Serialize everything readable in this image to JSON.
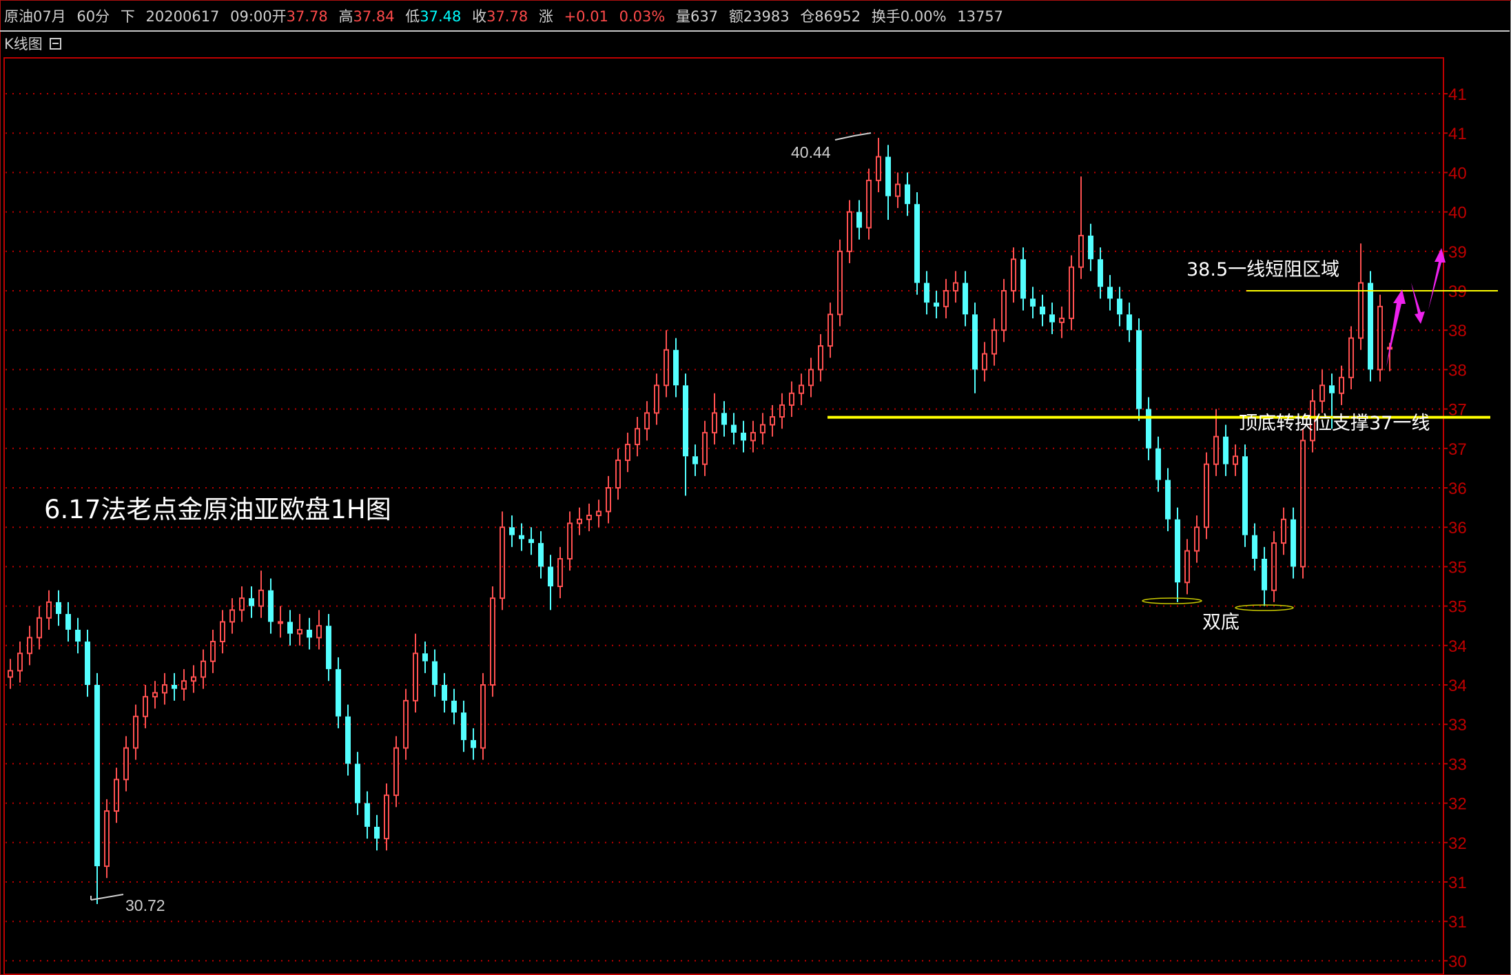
{
  "header": {
    "instrument": "原油07月",
    "period": "60分",
    "mode": "下",
    "date": "20200617",
    "time": "09:00",
    "open_label": "开",
    "open": "37.78",
    "high_label": "高",
    "high": "37.84",
    "low_label": "低",
    "low": "37.48",
    "close_label": "收",
    "close": "37.78",
    "change_label": "涨",
    "change": "+0.01",
    "change_pct": "0.03%",
    "volume": "量637",
    "amount": "额23983",
    "open_interest": "仓86952",
    "turnover": "换手0.00%",
    "extra": "13757"
  },
  "panel": {
    "title": "K线图",
    "toggle_icon": "minimize-box-icon"
  },
  "colors": {
    "up": "#ff5050",
    "down": "#54ffff",
    "axis": "#c00000",
    "grid": "#c00000",
    "annotation_line": "#ffff00",
    "arrow": "#ee22ee",
    "text": "#ffffff"
  },
  "chart_data": {
    "type": "candlestick",
    "title": "6.17法老点金原油亚欧盘1H图",
    "ylim": [
      30,
      41
    ],
    "yticks": [
      41,
      40.5,
      40,
      39.5,
      39,
      38.5,
      38,
      37.5,
      37,
      36.5,
      36,
      35.5,
      35,
      34.5,
      34,
      33.5,
      33,
      32.5,
      32,
      31.5,
      31,
      30.5,
      30
    ],
    "ytick_labels": [
      "41",
      "41",
      "40",
      "40",
      "39",
      "39",
      "38",
      "38",
      "37",
      "37",
      "36",
      "36",
      "35",
      "35",
      "34",
      "34",
      "33",
      "33",
      "32",
      "32",
      "31",
      "31",
      "30"
    ],
    "grid": true,
    "y_axis": "right",
    "ohlc": [
      [
        33.6,
        33.83,
        33.45,
        33.68
      ],
      [
        33.68,
        34.05,
        33.53,
        33.9
      ],
      [
        33.9,
        34.25,
        33.75,
        34.1
      ],
      [
        34.1,
        34.5,
        33.95,
        34.35
      ],
      [
        34.35,
        34.7,
        34.2,
        34.55
      ],
      [
        34.55,
        34.7,
        34.25,
        34.4
      ],
      [
        34.4,
        34.55,
        34.05,
        34.2
      ],
      [
        34.2,
        34.35,
        33.9,
        34.05
      ],
      [
        34.05,
        34.2,
        33.35,
        33.5
      ],
      [
        33.5,
        33.65,
        30.72,
        31.2
      ],
      [
        31.2,
        32.05,
        31.05,
        31.9
      ],
      [
        31.9,
        32.45,
        31.75,
        32.3
      ],
      [
        32.3,
        32.85,
        32.15,
        32.7
      ],
      [
        32.7,
        33.25,
        32.55,
        33.1
      ],
      [
        33.1,
        33.5,
        32.95,
        33.35
      ],
      [
        33.35,
        33.55,
        33.2,
        33.4
      ],
      [
        33.4,
        33.65,
        33.25,
        33.5
      ],
      [
        33.5,
        33.65,
        33.3,
        33.45
      ],
      [
        33.45,
        33.7,
        33.3,
        33.55
      ],
      [
        33.55,
        33.75,
        33.4,
        33.6
      ],
      [
        33.6,
        33.95,
        33.45,
        33.8
      ],
      [
        33.8,
        34.2,
        33.65,
        34.05
      ],
      [
        34.05,
        34.45,
        33.9,
        34.3
      ],
      [
        34.3,
        34.6,
        34.15,
        34.45
      ],
      [
        34.45,
        34.75,
        34.3,
        34.6
      ],
      [
        34.6,
        34.75,
        34.35,
        34.5
      ],
      [
        34.5,
        34.95,
        34.35,
        34.7
      ],
      [
        34.7,
        34.85,
        34.15,
        34.3
      ],
      [
        34.3,
        34.5,
        34.1,
        34.3
      ],
      [
        34.3,
        34.45,
        34.0,
        34.15
      ],
      [
        34.15,
        34.4,
        34.0,
        34.2
      ],
      [
        34.2,
        34.35,
        33.95,
        34.1
      ],
      [
        34.1,
        34.45,
        33.95,
        34.25
      ],
      [
        34.25,
        34.4,
        33.55,
        33.7
      ],
      [
        33.7,
        33.85,
        32.95,
        33.1
      ],
      [
        33.1,
        33.25,
        32.35,
        32.5
      ],
      [
        32.5,
        32.65,
        31.85,
        32.0
      ],
      [
        32.0,
        32.15,
        31.55,
        31.7
      ],
      [
        31.7,
        31.85,
        31.4,
        31.55
      ],
      [
        31.55,
        32.25,
        31.4,
        32.1
      ],
      [
        32.1,
        32.85,
        31.95,
        32.7
      ],
      [
        32.7,
        33.45,
        32.55,
        33.3
      ],
      [
        33.3,
        34.15,
        33.15,
        33.9
      ],
      [
        33.9,
        34.05,
        33.65,
        33.8
      ],
      [
        33.8,
        33.95,
        33.35,
        33.5
      ],
      [
        33.5,
        33.65,
        33.15,
        33.3
      ],
      [
        33.3,
        33.45,
        33.0,
        33.15
      ],
      [
        33.15,
        33.3,
        32.65,
        32.8
      ],
      [
        32.8,
        32.95,
        32.55,
        32.7
      ],
      [
        32.7,
        33.65,
        32.55,
        33.5
      ],
      [
        33.5,
        34.75,
        33.35,
        34.6
      ],
      [
        34.6,
        35.7,
        34.45,
        35.5
      ],
      [
        35.5,
        35.65,
        35.25,
        35.4
      ],
      [
        35.4,
        35.55,
        35.2,
        35.35
      ],
      [
        35.35,
        35.5,
        35.15,
        35.3
      ],
      [
        35.3,
        35.45,
        34.85,
        35.0
      ],
      [
        35.0,
        35.15,
        34.45,
        34.75
      ],
      [
        34.75,
        35.25,
        34.6,
        35.1
      ],
      [
        35.1,
        35.7,
        34.95,
        35.55
      ],
      [
        35.55,
        35.75,
        35.4,
        35.6
      ],
      [
        35.6,
        35.8,
        35.45,
        35.65
      ],
      [
        35.65,
        35.85,
        35.5,
        35.7
      ],
      [
        35.7,
        36.15,
        35.55,
        36.0
      ],
      [
        36.0,
        36.5,
        35.85,
        36.35
      ],
      [
        36.35,
        36.7,
        36.2,
        36.55
      ],
      [
        36.55,
        36.9,
        36.4,
        36.75
      ],
      [
        36.75,
        37.1,
        36.6,
        36.95
      ],
      [
        36.95,
        37.45,
        36.8,
        37.3
      ],
      [
        37.3,
        38.0,
        37.15,
        37.75
      ],
      [
        37.75,
        37.9,
        37.15,
        37.3
      ],
      [
        37.3,
        37.45,
        35.9,
        36.4
      ],
      [
        36.4,
        36.55,
        36.15,
        36.3
      ],
      [
        36.3,
        36.85,
        36.15,
        36.7
      ],
      [
        36.7,
        37.2,
        36.55,
        36.95
      ],
      [
        36.95,
        37.1,
        36.65,
        36.8
      ],
      [
        36.8,
        36.95,
        36.55,
        36.7
      ],
      [
        36.7,
        36.85,
        36.45,
        36.6
      ],
      [
        36.6,
        36.85,
        36.45,
        36.7
      ],
      [
        36.7,
        36.95,
        36.55,
        36.8
      ],
      [
        36.8,
        37.05,
        36.65,
        36.9
      ],
      [
        36.9,
        37.2,
        36.75,
        37.05
      ],
      [
        37.05,
        37.35,
        36.9,
        37.2
      ],
      [
        37.2,
        37.45,
        37.05,
        37.3
      ],
      [
        37.3,
        37.65,
        37.15,
        37.5
      ],
      [
        37.5,
        37.95,
        37.35,
        37.8
      ],
      [
        37.8,
        38.35,
        37.65,
        38.2
      ],
      [
        38.2,
        39.15,
        38.05,
        39.0
      ],
      [
        39.0,
        39.65,
        38.85,
        39.5
      ],
      [
        39.5,
        39.65,
        39.15,
        39.3
      ],
      [
        39.3,
        40.05,
        39.15,
        39.9
      ],
      [
        39.9,
        40.44,
        39.75,
        40.2
      ],
      [
        40.2,
        40.35,
        39.4,
        39.7
      ],
      [
        39.7,
        40.0,
        39.55,
        39.85
      ],
      [
        39.85,
        40.0,
        39.45,
        39.6
      ],
      [
        39.6,
        39.75,
        38.45,
        38.6
      ],
      [
        38.6,
        38.75,
        38.2,
        38.35
      ],
      [
        38.35,
        38.5,
        38.15,
        38.3
      ],
      [
        38.3,
        38.65,
        38.15,
        38.5
      ],
      [
        38.5,
        38.75,
        38.35,
        38.6
      ],
      [
        38.6,
        38.75,
        38.05,
        38.2
      ],
      [
        38.2,
        38.35,
        37.2,
        37.5
      ],
      [
        37.5,
        37.85,
        37.35,
        37.7
      ],
      [
        37.7,
        38.15,
        37.55,
        38.0
      ],
      [
        38.0,
        38.65,
        37.85,
        38.5
      ],
      [
        38.5,
        39.05,
        38.35,
        38.9
      ],
      [
        38.9,
        39.05,
        38.25,
        38.4
      ],
      [
        38.4,
        38.55,
        38.15,
        38.3
      ],
      [
        38.3,
        38.45,
        38.05,
        38.2
      ],
      [
        38.2,
        38.35,
        37.95,
        38.1
      ],
      [
        38.1,
        38.3,
        37.9,
        38.15
      ],
      [
        38.15,
        38.95,
        38.0,
        38.8
      ],
      [
        38.8,
        39.95,
        38.65,
        39.2
      ],
      [
        39.2,
        39.35,
        38.75,
        38.9
      ],
      [
        38.9,
        39.05,
        38.4,
        38.55
      ],
      [
        38.55,
        38.7,
        38.25,
        38.4
      ],
      [
        38.4,
        38.55,
        38.05,
        38.2
      ],
      [
        38.2,
        38.35,
        37.85,
        38.0
      ],
      [
        38.0,
        38.15,
        36.85,
        37.0
      ],
      [
        37.0,
        37.15,
        36.35,
        36.5
      ],
      [
        36.5,
        36.65,
        35.95,
        36.1
      ],
      [
        36.1,
        36.25,
        35.45,
        35.6
      ],
      [
        35.6,
        35.75,
        34.55,
        34.8
      ],
      [
        34.8,
        35.35,
        34.65,
        35.2
      ],
      [
        35.2,
        35.65,
        35.05,
        35.5
      ],
      [
        35.5,
        36.45,
        35.35,
        36.3
      ],
      [
        36.3,
        37.0,
        36.15,
        36.65
      ],
      [
        36.65,
        36.8,
        36.15,
        36.3
      ],
      [
        36.3,
        36.55,
        36.15,
        36.4
      ],
      [
        36.4,
        36.55,
        35.25,
        35.4
      ],
      [
        35.4,
        35.55,
        34.95,
        35.1
      ],
      [
        35.1,
        35.25,
        34.5,
        34.7
      ],
      [
        34.7,
        35.45,
        34.55,
        35.3
      ],
      [
        35.3,
        35.75,
        35.15,
        35.6
      ],
      [
        35.6,
        35.75,
        34.85,
        35.0
      ],
      [
        35.0,
        36.75,
        34.85,
        36.6
      ],
      [
        36.6,
        37.25,
        36.45,
        37.1
      ],
      [
        37.1,
        37.5,
        36.95,
        37.3
      ],
      [
        37.3,
        37.45,
        36.75,
        37.2
      ],
      [
        37.2,
        37.55,
        37.05,
        37.4
      ],
      [
        37.4,
        38.05,
        37.25,
        37.9
      ],
      [
        37.9,
        39.1,
        37.75,
        38.6
      ],
      [
        38.6,
        38.75,
        37.35,
        37.5
      ],
      [
        37.5,
        38.45,
        37.35,
        38.3
      ],
      [
        37.78,
        37.84,
        37.48,
        37.78
      ]
    ],
    "annotations": {
      "high_label": "40.44",
      "low_label": "30.72",
      "resistance_level": 38.5,
      "resistance_text": "38.5一线短阻区域",
      "support_level": 37,
      "support_text": "顶底转换位支撑37一线",
      "double_bottom_text": "双底"
    }
  }
}
